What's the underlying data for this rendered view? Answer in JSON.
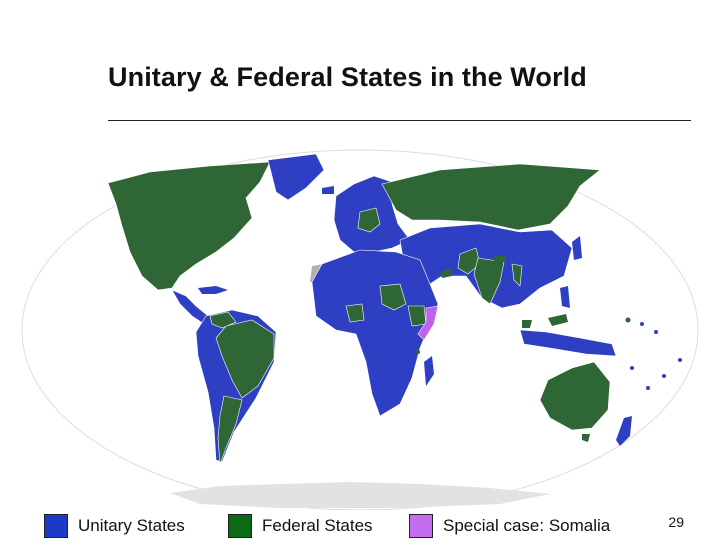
{
  "slide": {
    "title": "Unitary & Federal States in the World",
    "page_number": "29"
  },
  "map": {
    "colors": {
      "unitary": "#2f3fc4",
      "federal": "#2e6636",
      "special": "#c060ee",
      "ocean": "#ffffff",
      "antarctica": "#e2e2e2",
      "no_data": "#b0b0b0",
      "border": "#ffffff"
    }
  },
  "legend": {
    "items": [
      {
        "label": "Unitary States",
        "color": "#1c39c8"
      },
      {
        "label": "Federal States",
        "color": "#0a6b14"
      },
      {
        "label": "Special case: Somalia",
        "color": "#c56cf0"
      }
    ]
  }
}
